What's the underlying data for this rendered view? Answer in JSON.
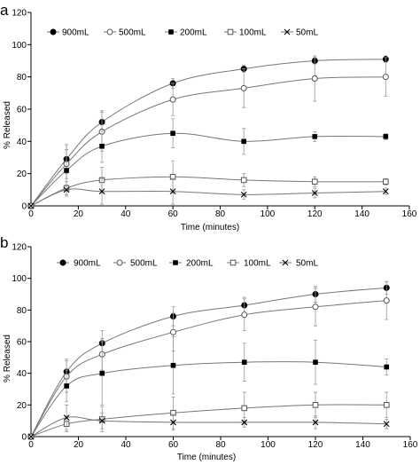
{
  "chart_data": [
    {
      "panel_label": "a",
      "type": "line",
      "xlabel": "Time (minutes)",
      "ylabel": "% Released",
      "xlim": [
        0,
        160
      ],
      "ylim": [
        0,
        120
      ],
      "x_ticks": [
        "0",
        "20",
        "40",
        "60",
        "80",
        "100",
        "120",
        "140",
        "160"
      ],
      "y_ticks": [
        "0",
        "20",
        "40",
        "60",
        "80",
        "100",
        "120"
      ],
      "legend_position": "top-left",
      "grid": false,
      "x": [
        0,
        15,
        30,
        60,
        90,
        120,
        150
      ],
      "series": [
        {
          "name": "900mL",
          "marker": "filled-circle",
          "values": [
            0,
            29,
            52,
            76,
            85,
            90,
            91
          ],
          "errors": [
            0,
            9,
            7,
            3,
            2,
            2,
            2
          ]
        },
        {
          "name": "500mL",
          "marker": "open-circle",
          "values": [
            0,
            26,
            46,
            66,
            73,
            79,
            80
          ],
          "errors": [
            0,
            9,
            12,
            10,
            12,
            14,
            12
          ]
        },
        {
          "name": "200mL",
          "marker": "filled-square",
          "values": [
            0,
            22,
            37,
            45,
            40,
            43,
            43
          ],
          "errors": [
            0,
            16,
            10,
            9,
            8,
            3,
            2
          ]
        },
        {
          "name": "100mL",
          "marker": "open-square",
          "values": [
            0,
            11,
            16,
            18,
            16,
            15,
            15
          ],
          "errors": [
            0,
            4,
            8,
            10,
            4,
            3,
            2
          ]
        },
        {
          "name": "50mL",
          "marker": "cross",
          "values": [
            0,
            10,
            9,
            9,
            7,
            8,
            9
          ],
          "errors": [
            0,
            3,
            8,
            8,
            3,
            3,
            2
          ]
        }
      ]
    },
    {
      "panel_label": "b",
      "type": "line",
      "xlabel": "Time (minutes)",
      "ylabel": "% Released",
      "xlim": [
        0,
        160
      ],
      "ylim": [
        0,
        120
      ],
      "x_ticks": [
        "0",
        "20",
        "40",
        "60",
        "80",
        "100",
        "120",
        "140",
        "160"
      ],
      "y_ticks": [
        "0",
        "20",
        "40",
        "60",
        "80",
        "100",
        "120"
      ],
      "legend_position": "top",
      "grid": false,
      "x": [
        0,
        15,
        30,
        60,
        90,
        120,
        150
      ],
      "series": [
        {
          "name": "900mL",
          "marker": "filled-circle",
          "values": [
            0,
            41,
            59,
            76,
            83,
            90,
            94
          ],
          "errors": [
            0,
            8,
            8,
            6,
            5,
            5,
            4
          ]
        },
        {
          "name": "500mL",
          "marker": "open-circle",
          "values": [
            0,
            38,
            52,
            66,
            77,
            82,
            86
          ],
          "errors": [
            0,
            10,
            10,
            12,
            10,
            12,
            12
          ]
        },
        {
          "name": "200mL",
          "marker": "filled-square",
          "values": [
            0,
            32,
            40,
            45,
            47,
            47,
            44
          ],
          "errors": [
            0,
            10,
            20,
            18,
            12,
            14,
            5
          ]
        },
        {
          "name": "100mL",
          "marker": "open-square",
          "values": [
            0,
            8,
            11,
            15,
            18,
            20,
            20
          ],
          "errors": [
            0,
            5,
            8,
            10,
            10,
            8,
            8
          ]
        },
        {
          "name": "50mL",
          "marker": "cross",
          "values": [
            0,
            12,
            10,
            9,
            9,
            9,
            8
          ],
          "errors": [
            0,
            8,
            5,
            5,
            3,
            4,
            3
          ]
        }
      ]
    }
  ]
}
